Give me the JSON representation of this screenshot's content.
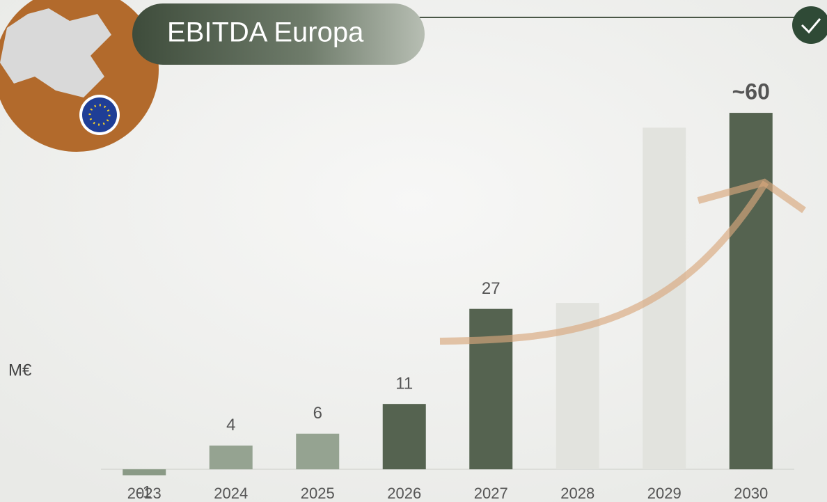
{
  "chart_data": {
    "type": "bar",
    "title": "EBITDA Europa",
    "unit_label": "M€",
    "categories": [
      "2023",
      "2024",
      "2025",
      "2026",
      "2027",
      "2028",
      "2029",
      "2030"
    ],
    "values": [
      -1,
      4,
      6,
      11,
      27,
      28,
      57.5,
      60
    ],
    "value_labels": [
      "-1",
      "4",
      "6",
      "11",
      "27",
      null,
      null,
      "~60"
    ],
    "colors": [
      "#8a9a86",
      "#95a391",
      "#95a391",
      "#556350",
      "#556350",
      "#e2e3de",
      "#e2e3de",
      "#556350"
    ],
    "ylim": [
      -5,
      62
    ]
  }
}
